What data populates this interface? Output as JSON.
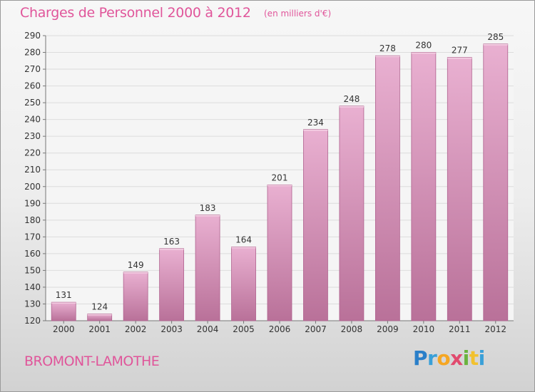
{
  "header": {
    "title": "Charges de Personnel 2000 à 2012",
    "subtitle": "(en milliers d'€)"
  },
  "footer": {
    "place": "BROMONT-LAMOTHE",
    "logo": [
      {
        "char": "P",
        "color": "#2a7fc9"
      },
      {
        "char": "r",
        "color": "#3aa0d8"
      },
      {
        "char": "o",
        "color": "#f5a623"
      },
      {
        "char": "x",
        "color": "#e14a6e"
      },
      {
        "char": "i",
        "color": "#6ab33e"
      },
      {
        "char": "t",
        "color": "#f2c12e"
      },
      {
        "char": "i",
        "color": "#3aa0d8"
      }
    ]
  },
  "colors": {
    "bar_top": "#e9b0d1",
    "bar_bottom": "#b97199",
    "bar_edge": "#b0628f",
    "accent": "#e0559a"
  },
  "chart_data": {
    "type": "bar",
    "title": "Charges de Personnel 2000 à 2012",
    "subtitle": "(en milliers d'€)",
    "categories": [
      "2000",
      "2001",
      "2002",
      "2003",
      "2004",
      "2005",
      "2006",
      "2007",
      "2008",
      "2009",
      "2010",
      "2011",
      "2012"
    ],
    "values": [
      131,
      124,
      149,
      163,
      183,
      164,
      201,
      234,
      248,
      278,
      280,
      277,
      285
    ],
    "ylim": [
      120,
      290
    ],
    "yticks": [
      120,
      130,
      140,
      150,
      160,
      170,
      180,
      190,
      200,
      210,
      220,
      230,
      240,
      250,
      260,
      270,
      280,
      290
    ],
    "grid": true,
    "xlabel": "",
    "ylabel": ""
  }
}
